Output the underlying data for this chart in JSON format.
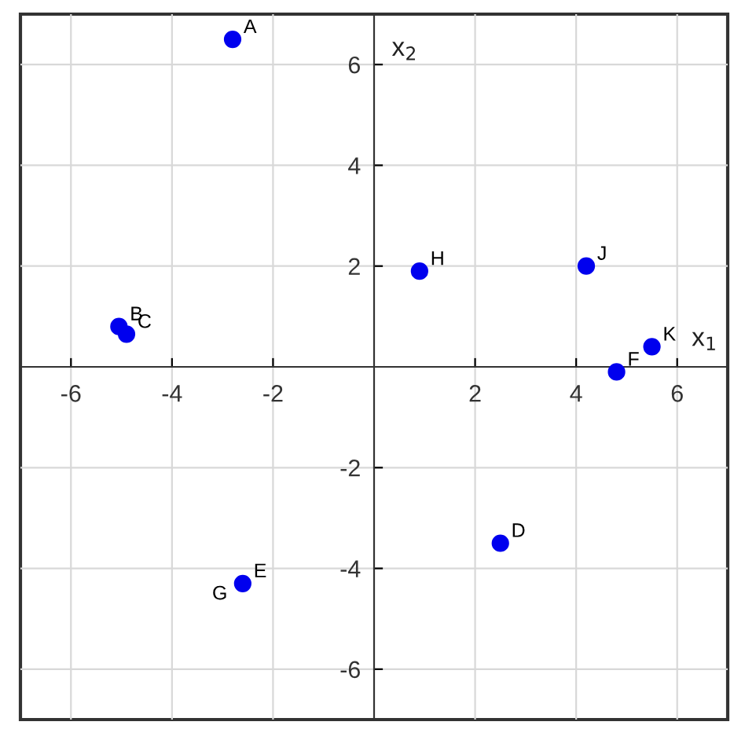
{
  "chart_data": {
    "type": "scatter",
    "xlabel": "x$_{1}$",
    "ylabel": "x$_{2}$",
    "x": [
      -2.8,
      -5.05,
      -4.9,
      2.5,
      -2.6,
      4.8,
      0.9,
      4.2,
      5.5
    ],
    "series": [
      {
        "color": "#0000ee",
        "values": [
          6.5,
          0.8,
          0.65,
          -3.5,
          -4.3,
          -0.1,
          1.9,
          2.0,
          0.4
        ]
      }
    ],
    "xlim": [
      -7,
      7
    ],
    "ylim": [
      -7,
      7
    ],
    "xticks": [
      -6,
      -4,
      -2,
      2,
      4,
      6
    ],
    "yticks": [
      -6,
      -4,
      -2,
      2,
      4,
      6
    ],
    "grid": true,
    "marker": "circle",
    "annotations": [
      {
        "text": "A",
        "x": -2.8,
        "y": 6.5
      },
      {
        "text": "B",
        "x": -5.05,
        "y": 0.8
      },
      {
        "text": "C",
        "x": -4.9,
        "y": 0.65
      },
      {
        "text": "D",
        "x": 2.5,
        "y": -3.5
      },
      {
        "text": "E",
        "x": -2.6,
        "y": -4.3
      },
      {
        "text": "G",
        "x": -2.6,
        "y": -4.3
      },
      {
        "text": "F",
        "x": 4.8,
        "y": -0.1
      },
      {
        "text": "H",
        "x": 0.9,
        "y": 1.9
      },
      {
        "text": "J",
        "x": 4.2,
        "y": 2.0
      },
      {
        "text": "K",
        "x": 5.5,
        "y": 0.4
      }
    ]
  }
}
